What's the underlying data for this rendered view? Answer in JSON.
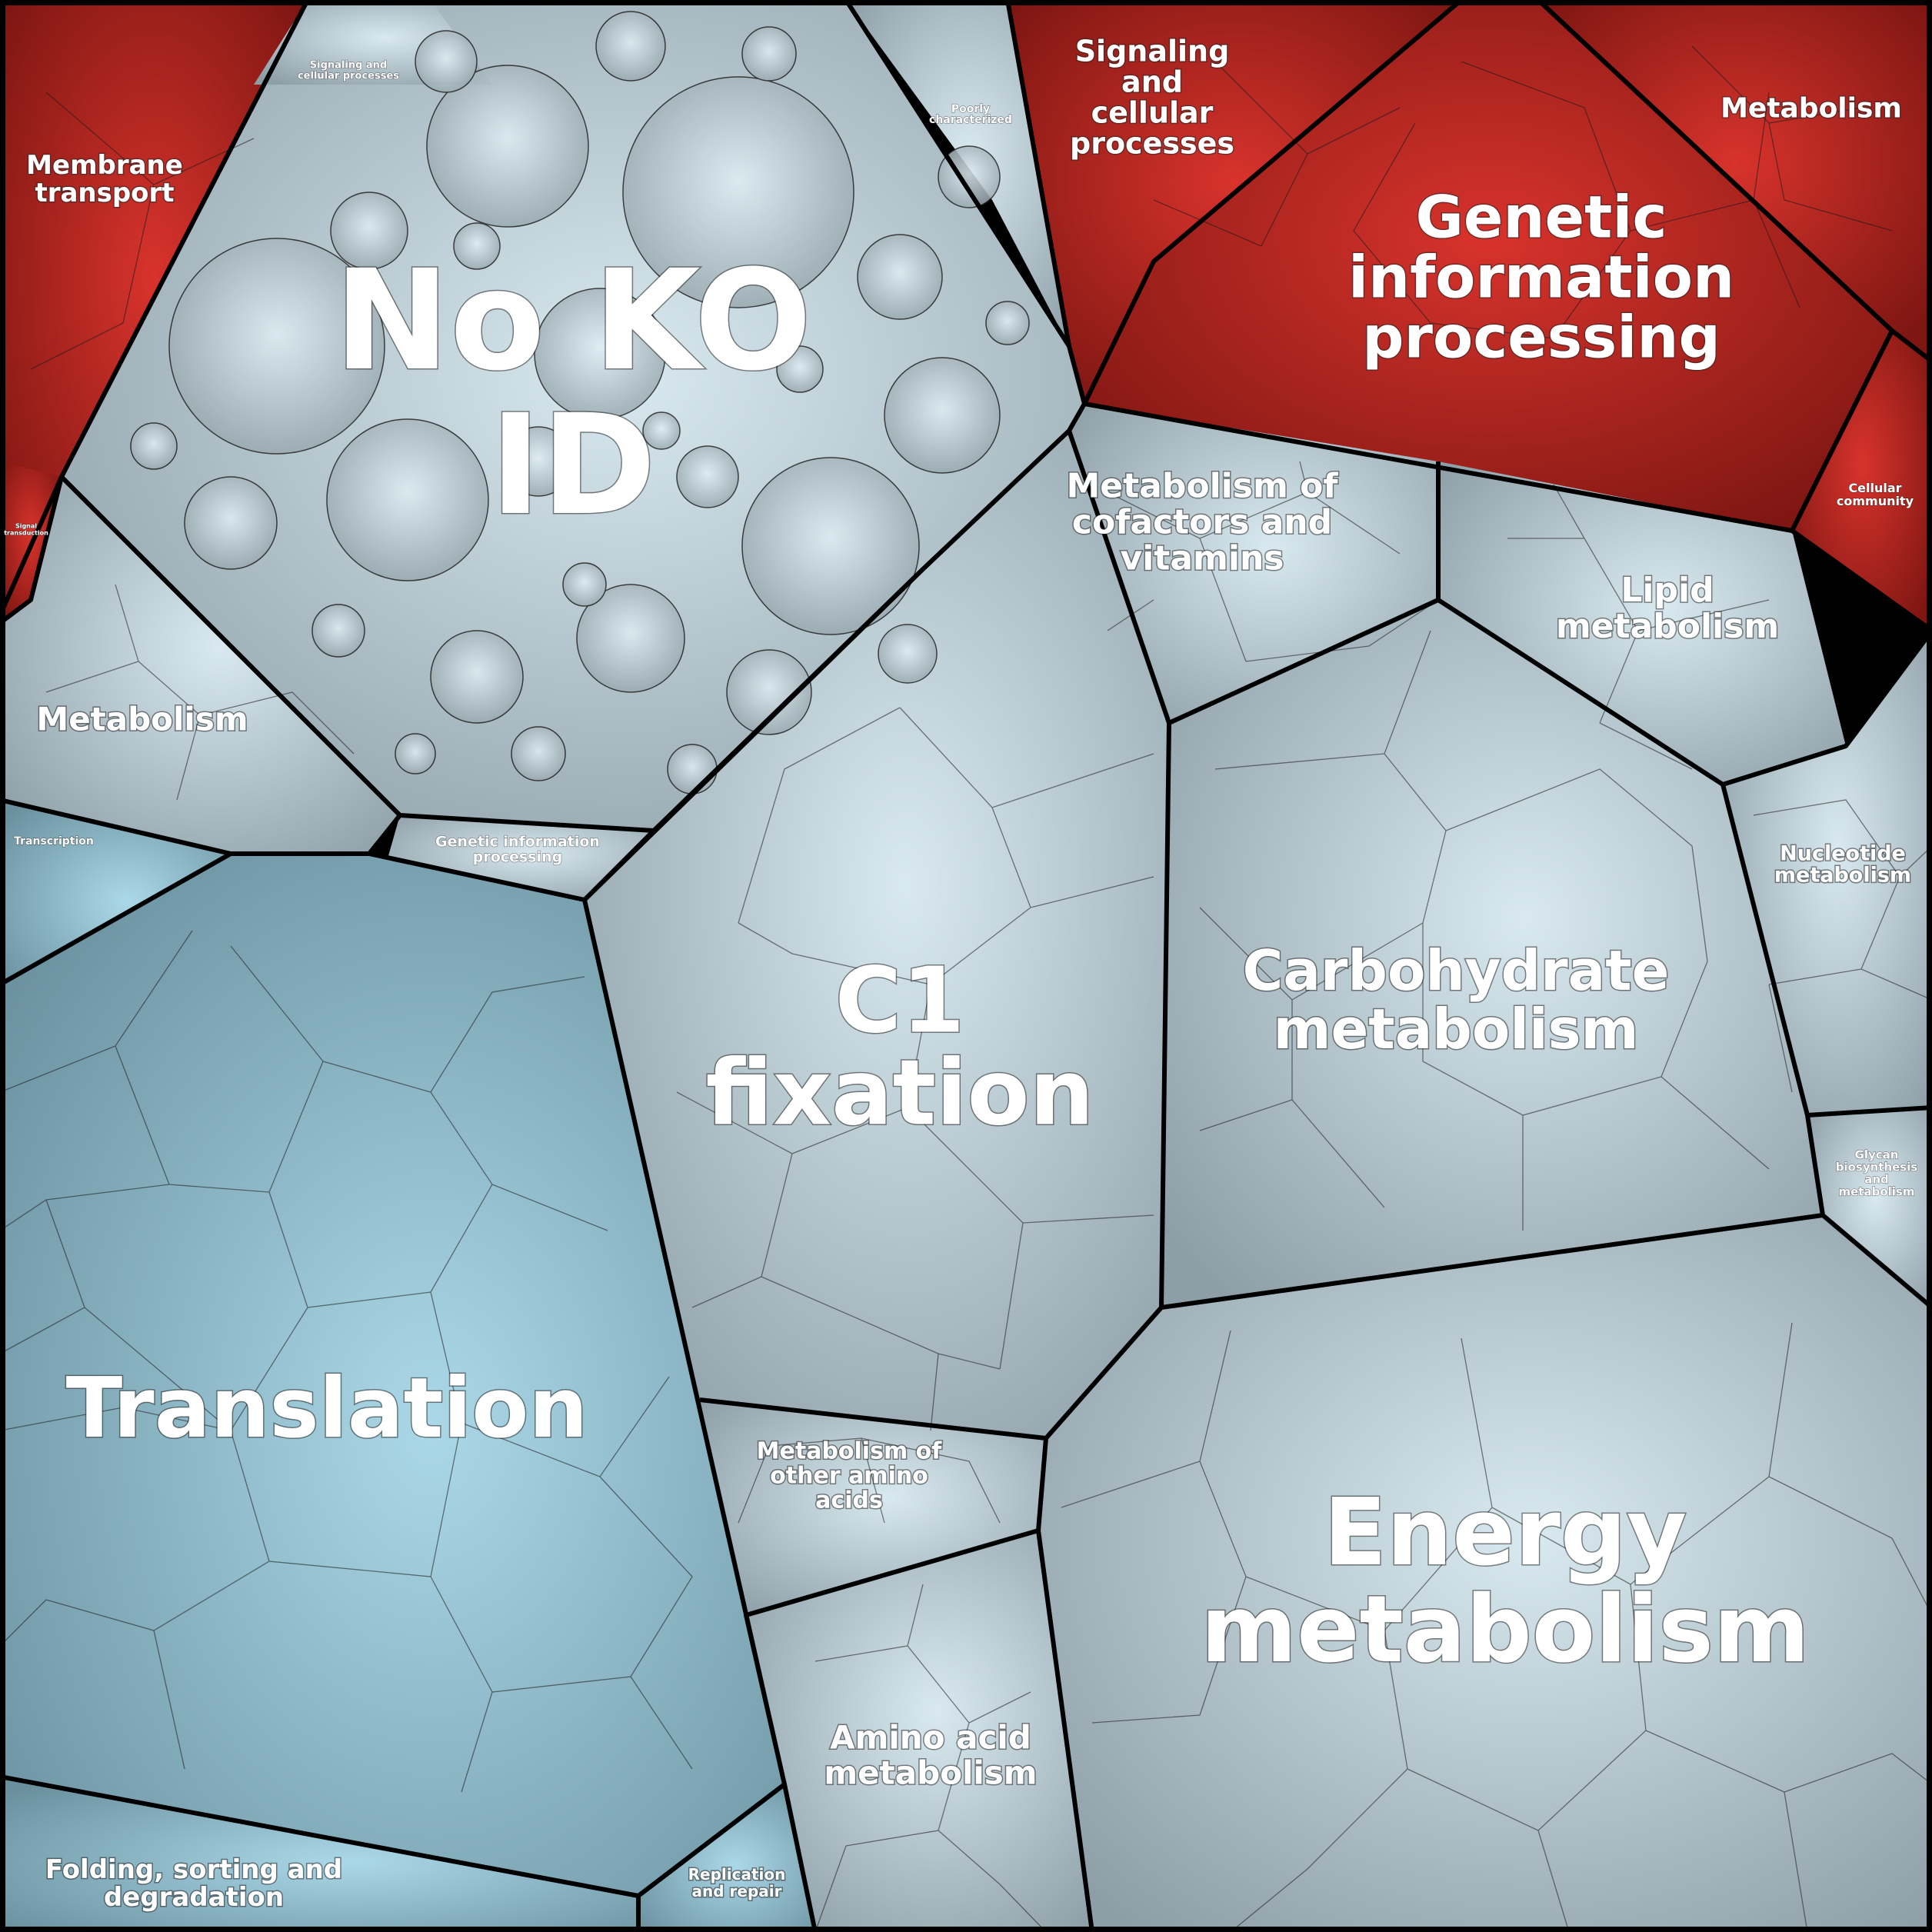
{
  "colors": {
    "red_dark": "#7e1612",
    "red_light": "#d3302a",
    "gray_dark": "#8c9ca4",
    "gray_light": "#d8e8ef",
    "blue_dark": "#6a93a2",
    "blue_light": "#a9d6e6",
    "border": "#000000"
  },
  "regions": [
    {
      "id": "membrane-transport",
      "label": "Membrane transport",
      "fill": "red"
    },
    {
      "id": "signal-transduction",
      "label": "Signal transduction",
      "fill": "red"
    },
    {
      "id": "no-ko-id",
      "label": "No KO ID",
      "fill": "gray"
    },
    {
      "id": "signaling-cellular-small",
      "label": "Signaling and cellular processes",
      "fill": "gray"
    },
    {
      "id": "poorly-characterized",
      "label": "Poorly characterized",
      "fill": "gray"
    },
    {
      "id": "metabolism-left",
      "label": "Metabolism",
      "fill": "gray"
    },
    {
      "id": "genetic-info-small",
      "label": "Genetic information processing",
      "fill": "gray"
    },
    {
      "id": "transcription",
      "label": "Transcription",
      "fill": "blue"
    },
    {
      "id": "translation",
      "label": "Translation",
      "fill": "blue"
    },
    {
      "id": "folding-sorting",
      "label": "Folding, sorting and degradation",
      "fill": "blue"
    },
    {
      "id": "replication-repair",
      "label": "Replication and repair",
      "fill": "blue"
    },
    {
      "id": "signaling-cellular-red",
      "label": "Signaling and cellular processes",
      "fill": "red"
    },
    {
      "id": "genetic-info-red",
      "label": "Genetic information processing",
      "fill": "red"
    },
    {
      "id": "metabolism-red",
      "label": "Metabolism",
      "fill": "red"
    },
    {
      "id": "cellular-community",
      "label": "Cellular community",
      "fill": "red"
    },
    {
      "id": "metabolism-cofactors",
      "label": "Metabolism of cofactors and vitamins",
      "fill": "gray"
    },
    {
      "id": "lipid-metabolism",
      "label": "Lipid metabolism",
      "fill": "gray"
    },
    {
      "id": "c1-fixation",
      "label": "C1 fixation",
      "fill": "gray"
    },
    {
      "id": "carbohydrate-metabolism",
      "label": "Carbohydrate metabolism",
      "fill": "gray"
    },
    {
      "id": "nucleotide-metabolism",
      "label": "Nucleotide metabolism",
      "fill": "gray"
    },
    {
      "id": "glycan-biosynthesis",
      "label": "Glycan biosynthesis and metabolism",
      "fill": "gray"
    },
    {
      "id": "other-amino-acids",
      "label": "Metabolism of other amino acids",
      "fill": "gray"
    },
    {
      "id": "amino-acid-metabolism",
      "label": "Amino acid metabolism",
      "fill": "gray"
    },
    {
      "id": "energy-metabolism",
      "label": "Energy metabolism",
      "fill": "gray"
    }
  ],
  "labels": {
    "membrane_transport": [
      "Membrane",
      "transport"
    ],
    "signal_transduction": [
      "Signal",
      "transduction"
    ],
    "no_ko_id": [
      "No KO",
      "ID"
    ],
    "signaling_small": [
      "Signaling and",
      "cellular processes"
    ],
    "poorly": [
      "Poorly",
      "characterized"
    ],
    "metabolism_left": [
      "Metabolism"
    ],
    "genetic_small": [
      "Genetic information",
      "processing"
    ],
    "transcription": [
      "Transcription"
    ],
    "translation": [
      "Translation"
    ],
    "folding": [
      "Folding, sorting and",
      "degradation"
    ],
    "replication": [
      "Replication",
      "and repair"
    ],
    "signaling_red": [
      "Signaling",
      "and",
      "cellular",
      "processes"
    ],
    "genetic_red": [
      "Genetic",
      "information",
      "processing"
    ],
    "metabolism_red": [
      "Metabolism"
    ],
    "cellular_community": [
      "Cellular",
      "community"
    ],
    "cofactors": [
      "Metabolism of",
      "cofactors and",
      "vitamins"
    ],
    "lipid": [
      "Lipid",
      "metabolism"
    ],
    "c1": [
      "C1",
      "fixation"
    ],
    "carbohydrate": [
      "Carbohydrate",
      "metabolism"
    ],
    "nucleotide": [
      "Nucleotide",
      "metabolism"
    ],
    "glycan": [
      "Glycan",
      "biosynthesis",
      "and",
      "metabolism"
    ],
    "other_amino": [
      "Metabolism of",
      "other amino",
      "acids"
    ],
    "amino_acid": [
      "Amino acid",
      "metabolism"
    ],
    "energy": [
      "Energy",
      "metabolism"
    ]
  }
}
